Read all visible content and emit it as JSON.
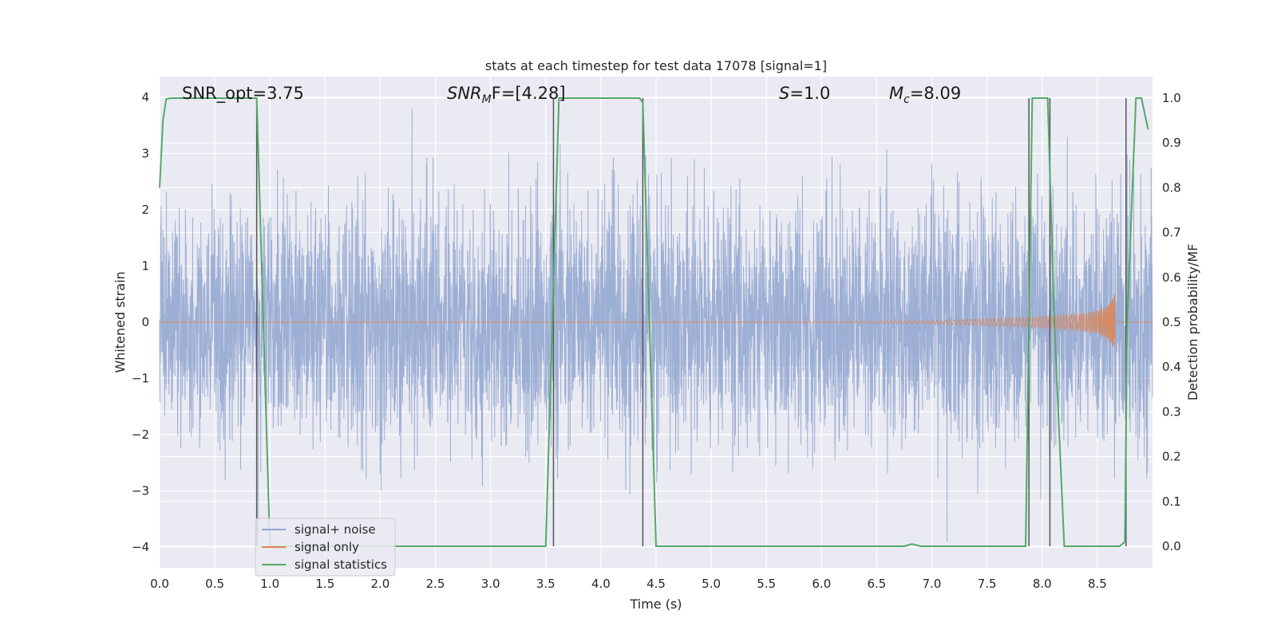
{
  "chart_data": {
    "type": "line",
    "title": "stats at each timestep for test data 17078 [signal=1]",
    "xlabel": "Time (s)",
    "ylabel": "Whitened strain",
    "y2label": "Detection probability/MF",
    "xlim": [
      0.0,
      9.0
    ],
    "ylim": [
      -4.3,
      4.4
    ],
    "y2lim": [
      -0.05,
      1.05
    ],
    "x_ticks": [
      "0.0",
      "0.5",
      "1.0",
      "1.5",
      "2.0",
      "2.5",
      "3.0",
      "3.5",
      "4.0",
      "4.5",
      "5.0",
      "5.5",
      "6.0",
      "6.5",
      "7.0",
      "7.5",
      "8.0",
      "8.5"
    ],
    "y_ticks": [
      "−4",
      "−3",
      "−2",
      "−1",
      "0",
      "1",
      "2",
      "3",
      "4"
    ],
    "y2_ticks": [
      "0.0",
      "0.1",
      "0.2",
      "0.3",
      "0.4",
      "0.5",
      "0.6",
      "0.7",
      "0.8",
      "0.9",
      "1.0"
    ],
    "grid": true,
    "legend_position": "lower-left",
    "annotations": [
      {
        "id": "snr_opt",
        "text": "SNR_opt=3.75"
      },
      {
        "id": "snr_mf",
        "main": "SNR",
        "sub": "M",
        "tail": "F=[4.28]"
      },
      {
        "id": "s",
        "main": "S",
        "tail": "=1.0"
      },
      {
        "id": "mc",
        "main": "M",
        "sub": "c",
        "tail": "=8.09"
      }
    ],
    "series": [
      {
        "name": "signal+ noise",
        "color": "#8fa4cf",
        "description_range": [
          -3.9,
          3.8
        ],
        "typical_band": [
          -1.6,
          1.6
        ]
      },
      {
        "name": "signal only",
        "color": "#dd8452",
        "chirp_envelope": {
          "x": [
            6.0,
            7.0,
            7.5,
            8.0,
            8.3,
            8.5,
            8.6,
            8.66
          ],
          "amp": [
            0.01,
            0.03,
            0.06,
            0.1,
            0.14,
            0.2,
            0.3,
            0.5
          ]
        }
      },
      {
        "name": "signal statistics",
        "color": "#55a868",
        "axis": "right",
        "x": [
          0.0,
          0.03,
          0.06,
          0.1,
          0.85,
          0.88,
          1.0,
          1.0,
          3.5,
          3.56,
          3.62,
          4.35,
          4.38,
          4.5,
          6.75,
          6.82,
          6.9,
          7.85,
          7.91,
          8.05,
          8.11,
          8.2,
          8.7,
          8.75,
          8.77,
          8.85,
          8.9,
          8.96
        ],
        "y": [
          0.8,
          0.95,
          0.998,
          1.0,
          1.0,
          1.0,
          0.0,
          0.0,
          0.0,
          0.5,
          1.0,
          1.0,
          0.99,
          0.0,
          0.0,
          0.005,
          0.0,
          0.0,
          1.0,
          1.0,
          0.5,
          0.0,
          0.0,
          0.01,
          0.5,
          1.0,
          1.0,
          0.93
        ]
      }
    ],
    "vertical_markers_x": [
      0.88,
      3.57,
      4.38,
      7.88,
      8.07,
      8.76
    ]
  }
}
